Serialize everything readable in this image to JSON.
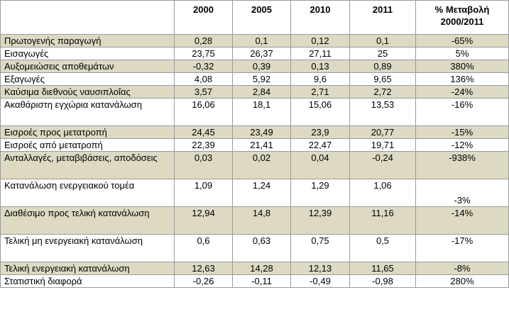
{
  "table": {
    "columns": [
      "",
      "2000",
      "2005",
      "2010",
      "2011",
      "% Μεταβολή 2000/2011"
    ],
    "rows": [
      {
        "label": "Πρωτογενής παραγωγή",
        "v2000": "0,28",
        "v2005": "0,1",
        "v2010": "0,12",
        "v2011": "0,1",
        "change": "-65%"
      },
      {
        "label": "Εισαγωγές",
        "v2000": "23,75",
        "v2005": "26,37",
        "v2010": "27,11",
        "v2011": "25",
        "change": "5%"
      },
      {
        "label": "Αυξομειώσεις αποθεμάτων",
        "v2000": "-0,32",
        "v2005": "0,39",
        "v2010": "0,13",
        "v2011": "0,89",
        "change": "380%"
      },
      {
        "label": "Εξαγωγές",
        "v2000": "4,08",
        "v2005": "5,92",
        "v2010": "9,6",
        "v2011": "9,65",
        "change": "136%"
      },
      {
        "label": "Καύσιμα διεθνούς ναυσιπλοΐας",
        "v2000": "3,57",
        "v2005": "2,84",
        "v2010": "2,71",
        "v2011": "2,72",
        "change": "-24%"
      },
      {
        "label": "Ακαθάριστη εγχώρια κατανάλωση",
        "v2000": "16,06",
        "v2005": "18,1",
        "v2010": "15,06",
        "v2011": "13,53",
        "change": "-16%"
      },
      {
        "label": "Εισροές προς μετατροπή",
        "v2000": "24,45",
        "v2005": "23,49",
        "v2010": "23,9",
        "v2011": "20,77",
        "change": "-15%"
      },
      {
        "label": "Εισροές από μετατροπή",
        "v2000": "22,39",
        "v2005": "21,41",
        "v2010": "22,47",
        "v2011": "19,71",
        "change": "-12%"
      },
      {
        "label": "Ανταλλαγές, μεταβιβάσεις, αποδόσεις",
        "v2000": "0,03",
        "v2005": "0,02",
        "v2010": "0,04",
        "v2011": "-0,24",
        "change": "-938%"
      },
      {
        "label": "Κατανάλωση ενεργειακού τομέα",
        "v2000": "1,09",
        "v2005": "1,24",
        "v2010": "1,29",
        "v2011": "1,06",
        "change": "-3%"
      },
      {
        "label": "Διαθέσιμο προς τελική κατανάλωση",
        "v2000": "12,94",
        "v2005": "14,8",
        "v2010": "12,39",
        "v2011": "11,16",
        "change": "-14%"
      },
      {
        "label": "Τελική μη ενεργειακή κατανάλωση",
        "v2000": "0,6",
        "v2005": "0,63",
        "v2010": "0,75",
        "v2011": "0,5",
        "change": "-17%"
      },
      {
        "label": "Τελική ενεργειακή κατανάλωση",
        "v2000": "12,63",
        "v2005": "14,28",
        "v2010": "12,13",
        "v2011": "11,65",
        "change": "-8%"
      },
      {
        "label": "Στατιστική διαφορά",
        "v2000": "-0,26",
        "v2005": "-0,11",
        "v2010": "-0,49",
        "v2011": "-0,98",
        "change": "280%"
      }
    ]
  },
  "style": {
    "shaded_row_color": "#ddd9c3",
    "plain_row_color": "#ffffff",
    "border_color": "#9a9a9a"
  }
}
